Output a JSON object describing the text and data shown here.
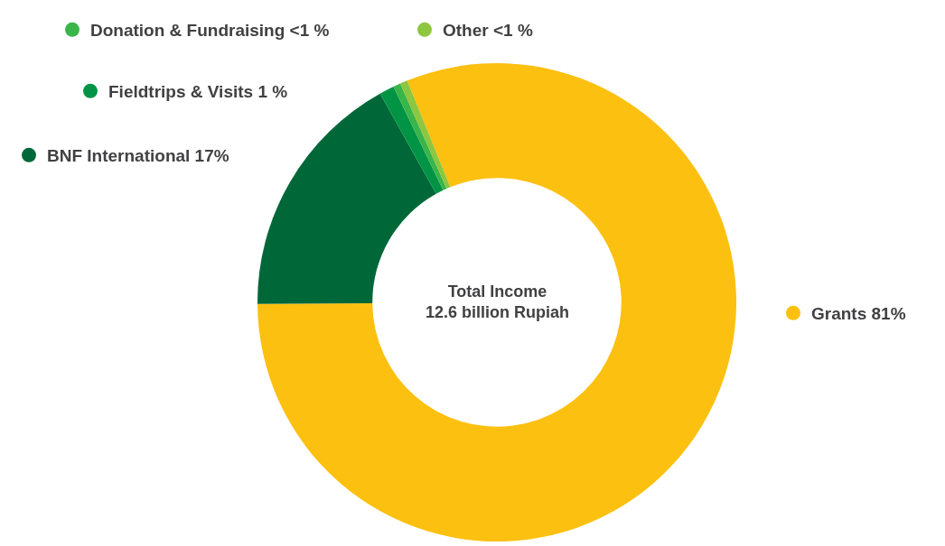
{
  "chart_data": {
    "type": "donut",
    "categories": [
      "Grants",
      "BNF International",
      "Fieldtrips & Visits",
      "Donation & Fundraising",
      "Other"
    ],
    "values": [
      81,
      17,
      1,
      0.5,
      0.5
    ],
    "value_labels": [
      "81%",
      "17%",
      "1 %",
      "<1 %",
      "<1 %"
    ],
    "colors": [
      "#fcc010",
      "#006838",
      "#009444",
      "#39b54a",
      "#8dc63f"
    ],
    "legend": "top",
    "annotations": [
      "Total Income\n12.6 billion Rupiah"
    ]
  }
}
